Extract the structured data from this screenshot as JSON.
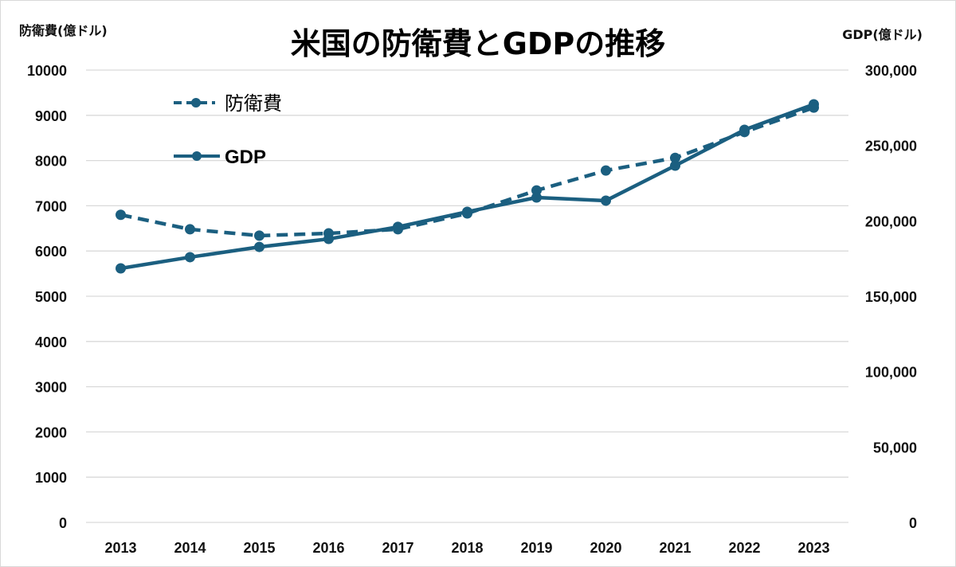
{
  "chart_data": {
    "type": "line",
    "title": "米国の防衛費とGDPの推移",
    "ylabel_left": "防衛費(億ドル)",
    "ylabel_right": "GDP(億ドル)",
    "xlabel": "",
    "categories": [
      "2013",
      "2014",
      "2015",
      "2016",
      "2017",
      "2018",
      "2019",
      "2020",
      "2021",
      "2022",
      "2023"
    ],
    "y_left": {
      "range": [
        0,
        10000
      ],
      "ticks": [
        0,
        1000,
        2000,
        3000,
        4000,
        5000,
        6000,
        7000,
        8000,
        9000,
        10000
      ],
      "tick_labels": [
        "0",
        "1000",
        "2000",
        "3000",
        "4000",
        "5000",
        "6000",
        "7000",
        "8000",
        "9000",
        "10000"
      ]
    },
    "y_right": {
      "range": [
        0,
        300000
      ],
      "ticks": [
        0,
        50000,
        100000,
        150000,
        200000,
        250000,
        300000
      ],
      "tick_labels": [
        "0",
        "50,000",
        "100,000",
        "150,000",
        "200,000",
        "250,000",
        "300,000"
      ]
    },
    "grid": true,
    "legend_position": "top-left",
    "series": [
      {
        "name": "防衛費",
        "axis": "left",
        "style": "dashed",
        "color": "#1b5f80",
        "values": [
          6800,
          6480,
          6340,
          6390,
          6480,
          6830,
          7340,
          7780,
          8060,
          8630,
          9170
        ]
      },
      {
        "name": "GDP",
        "axis": "right",
        "style": "solid",
        "color": "#1b5f80",
        "values": [
          168500,
          175900,
          182700,
          188000,
          196000,
          206000,
          215500,
          213400,
          236600,
          260400,
          277300
        ]
      }
    ]
  }
}
